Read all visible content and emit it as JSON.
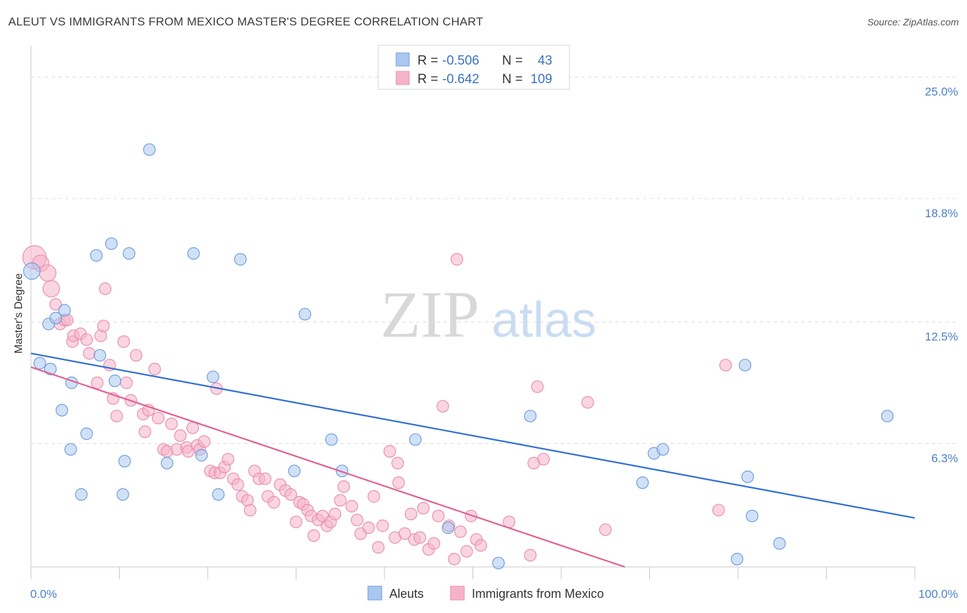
{
  "header": {
    "title": "ALEUT VS IMMIGRANTS FROM MEXICO MASTER'S DEGREE CORRELATION CHART",
    "source": "Source: ZipAtlas.com"
  },
  "watermark": {
    "zip": "ZIP",
    "atlas": "atlas"
  },
  "legend_top": {
    "rows": [
      {
        "r_label": "R = ",
        "r_value": "-0.506",
        "n_label": "N = ",
        "n_value": "43",
        "color": "#a9c8f0"
      },
      {
        "r_label": "R = ",
        "r_value": "-0.642",
        "n_label": "N = ",
        "n_value": "109",
        "color": "#f6b3c8"
      }
    ]
  },
  "legend_bottom": [
    {
      "label": "Aleuts",
      "color": "#a9c8f0"
    },
    {
      "label": "Immigrants from Mexico",
      "color": "#f6b3c8"
    }
  ],
  "colors": {
    "aleut_fill": "#a9c8f0",
    "aleut_stroke": "#6f9fdc",
    "aleut_line": "#2f6fd0",
    "mexico_fill": "#f6b3c8",
    "mexico_stroke": "#e890ad",
    "mexico_line": "#e06090",
    "grid": "#dcdcdc",
    "axis_label": "#4a7fc8"
  },
  "chart_data": {
    "type": "scatter",
    "title": "ALEUT VS IMMIGRANTS FROM MEXICO MASTER'S DEGREE CORRELATION CHART",
    "xlabel": "",
    "ylabel": "Master's Degree",
    "xlim": [
      0,
      100
    ],
    "ylim": [
      0,
      26.2
    ],
    "y_ticks": [
      6.3,
      12.5,
      18.8,
      25.0
    ],
    "y_tick_labels": [
      "6.3%",
      "12.5%",
      "18.8%",
      "25.0%"
    ],
    "x_tick_labels": [
      "0.0%",
      "100.0%"
    ],
    "grid": true,
    "legend_position": "top-center",
    "series": [
      {
        "name": "Aleuts",
        "r": -0.506,
        "n": 43,
        "trend": {
          "x": [
            0,
            100
          ],
          "y": [
            10.9,
            2.5
          ]
        },
        "points": [
          [
            0.1,
            15.1,
            2
          ],
          [
            1.0,
            10.4,
            1
          ],
          [
            2.0,
            12.4,
            1
          ],
          [
            2.2,
            10.1,
            1
          ],
          [
            2.8,
            12.7,
            1
          ],
          [
            3.5,
            8.0,
            1
          ],
          [
            3.8,
            13.1,
            1
          ],
          [
            4.5,
            6.0,
            1
          ],
          [
            4.6,
            9.4,
            1
          ],
          [
            5.7,
            3.7,
            1
          ],
          [
            6.3,
            6.8,
            1
          ],
          [
            7.4,
            15.9,
            1
          ],
          [
            7.8,
            10.8,
            1
          ],
          [
            9.1,
            16.5,
            1
          ],
          [
            9.5,
            9.5,
            1
          ],
          [
            10.4,
            3.7,
            1
          ],
          [
            10.6,
            5.4,
            1
          ],
          [
            11.1,
            16.0,
            1
          ],
          [
            13.4,
            21.3,
            1
          ],
          [
            15.4,
            5.3,
            1
          ],
          [
            18.4,
            16.0,
            1
          ],
          [
            19.3,
            5.7,
            1
          ],
          [
            20.6,
            9.7,
            1
          ],
          [
            21.2,
            3.7,
            1
          ],
          [
            23.7,
            15.7,
            1
          ],
          [
            29.8,
            4.9,
            1
          ],
          [
            31.0,
            12.9,
            1
          ],
          [
            34.0,
            6.5,
            1
          ],
          [
            35.2,
            4.9,
            1
          ],
          [
            43.5,
            6.5,
            1
          ],
          [
            47.2,
            2.0,
            1
          ],
          [
            52.9,
            0.2,
            1
          ],
          [
            56.5,
            7.7,
            1
          ],
          [
            69.2,
            4.3,
            1
          ],
          [
            70.5,
            5.8,
            1
          ],
          [
            71.5,
            6.0,
            1
          ],
          [
            79.9,
            0.4,
            1
          ],
          [
            80.8,
            10.3,
            1
          ],
          [
            81.1,
            4.6,
            1
          ],
          [
            81.6,
            2.6,
            1
          ],
          [
            84.7,
            1.2,
            1
          ],
          [
            96.9,
            7.7,
            1
          ]
        ]
      },
      {
        "name": "Immigrants from Mexico",
        "r": -0.642,
        "n": 109,
        "trend": {
          "x": [
            0,
            67.2
          ],
          "y": [
            10.2,
            0
          ]
        },
        "points": [
          [
            0.4,
            15.8,
            3
          ],
          [
            1.1,
            15.5,
            2
          ],
          [
            1.9,
            15.0,
            2
          ],
          [
            2.3,
            14.2,
            2
          ],
          [
            2.8,
            13.4,
            1
          ],
          [
            3.3,
            12.4,
            1
          ],
          [
            3.8,
            12.6,
            1
          ],
          [
            4.1,
            12.6,
            1
          ],
          [
            4.7,
            11.5,
            1
          ],
          [
            4.8,
            11.8,
            1
          ],
          [
            5.6,
            11.9,
            1
          ],
          [
            6.3,
            11.6,
            1
          ],
          [
            6.6,
            10.9,
            1
          ],
          [
            7.5,
            9.4,
            1
          ],
          [
            7.9,
            11.8,
            1
          ],
          [
            8.2,
            12.3,
            1
          ],
          [
            8.4,
            14.2,
            1
          ],
          [
            8.9,
            10.3,
            1
          ],
          [
            9.3,
            8.6,
            1
          ],
          [
            9.7,
            7.7,
            1
          ],
          [
            10.5,
            11.5,
            1
          ],
          [
            10.8,
            9.4,
            1
          ],
          [
            11.3,
            8.5,
            1
          ],
          [
            11.9,
            10.8,
            1
          ],
          [
            12.7,
            7.8,
            1
          ],
          [
            12.9,
            6.9,
            1
          ],
          [
            13.3,
            8.0,
            1
          ],
          [
            14.0,
            10.1,
            1
          ],
          [
            14.4,
            7.6,
            1
          ],
          [
            15.0,
            6.0,
            1
          ],
          [
            15.4,
            5.9,
            1
          ],
          [
            15.9,
            7.3,
            1
          ],
          [
            16.5,
            6.0,
            1
          ],
          [
            16.9,
            6.7,
            1
          ],
          [
            17.6,
            6.1,
            1
          ],
          [
            17.8,
            5.9,
            1
          ],
          [
            18.3,
            7.1,
            1
          ],
          [
            18.8,
            6.2,
            1
          ],
          [
            19.1,
            6.0,
            1
          ],
          [
            19.6,
            6.4,
            1
          ],
          [
            20.3,
            4.9,
            1
          ],
          [
            20.8,
            4.8,
            1
          ],
          [
            21.4,
            4.8,
            1
          ],
          [
            21.9,
            5.1,
            1
          ],
          [
            22.3,
            5.5,
            1
          ],
          [
            22.9,
            4.5,
            1
          ],
          [
            23.4,
            4.2,
            1
          ],
          [
            23.9,
            3.6,
            1
          ],
          [
            24.5,
            3.4,
            1
          ],
          [
            24.8,
            2.9,
            1
          ],
          [
            25.3,
            4.9,
            1
          ],
          [
            25.8,
            4.5,
            1
          ],
          [
            26.5,
            4.5,
            1
          ],
          [
            26.8,
            3.6,
            1
          ],
          [
            27.5,
            3.3,
            1
          ],
          [
            28.2,
            4.2,
            1
          ],
          [
            28.8,
            3.9,
            1
          ],
          [
            29.4,
            3.7,
            1
          ],
          [
            30.0,
            2.3,
            1
          ],
          [
            30.4,
            3.3,
            1
          ],
          [
            30.8,
            3.2,
            1
          ],
          [
            31.3,
            2.9,
            1
          ],
          [
            31.7,
            2.6,
            1
          ],
          [
            32.5,
            2.4,
            1
          ],
          [
            33.0,
            2.6,
            1
          ],
          [
            33.5,
            2.1,
            1
          ],
          [
            33.9,
            2.3,
            1
          ],
          [
            34.4,
            2.7,
            1
          ],
          [
            35.0,
            3.4,
            1
          ],
          [
            35.4,
            4.1,
            1
          ],
          [
            36.3,
            3.1,
            1
          ],
          [
            36.9,
            2.4,
            1
          ],
          [
            37.3,
            1.7,
            1
          ],
          [
            38.2,
            2.0,
            1
          ],
          [
            38.8,
            3.6,
            1
          ],
          [
            39.3,
            1.0,
            1
          ],
          [
            39.8,
            2.1,
            1
          ],
          [
            40.6,
            5.9,
            1
          ],
          [
            41.2,
            1.5,
            1
          ],
          [
            41.6,
            4.3,
            1
          ],
          [
            42.3,
            1.7,
            1
          ],
          [
            43.0,
            2.7,
            1
          ],
          [
            43.4,
            1.4,
            1
          ],
          [
            44.0,
            1.5,
            1
          ],
          [
            44.4,
            3.0,
            1
          ],
          [
            45.0,
            0.9,
            1
          ],
          [
            45.6,
            1.2,
            1
          ],
          [
            46.1,
            2.6,
            1
          ],
          [
            46.6,
            8.2,
            1
          ],
          [
            47.3,
            2.1,
            1
          ],
          [
            47.9,
            0.4,
            1
          ],
          [
            48.2,
            15.7,
            1
          ],
          [
            48.6,
            1.8,
            1
          ],
          [
            49.3,
            0.8,
            1
          ],
          [
            49.8,
            2.6,
            1
          ],
          [
            50.4,
            1.4,
            1
          ],
          [
            50.9,
            1.1,
            1
          ],
          [
            54.1,
            2.3,
            1
          ],
          [
            56.5,
            0.6,
            1
          ],
          [
            56.9,
            5.3,
            1
          ],
          [
            57.3,
            9.2,
            1
          ],
          [
            58.0,
            5.5,
            1
          ],
          [
            63.0,
            8.4,
            1
          ],
          [
            65.0,
            1.9,
            1
          ],
          [
            77.8,
            2.9,
            1
          ],
          [
            78.6,
            10.3,
            1
          ],
          [
            41.5,
            5.3,
            1
          ],
          [
            21.0,
            9.1,
            1
          ],
          [
            32.0,
            1.6,
            1
          ]
        ]
      }
    ]
  }
}
